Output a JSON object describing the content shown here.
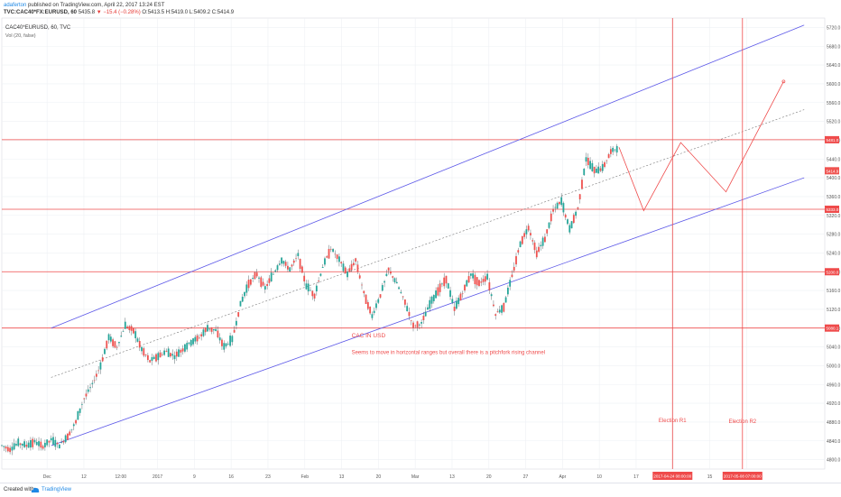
{
  "header": {
    "author": "adaferton",
    "published": "published on TradingView.com, April 22, 2017 13:24 EST",
    "symbol": "TVC:CAC40*FX:EURUSD, 60",
    "last": "5435.8",
    "change": "▼ −15.4 (−0.28%)",
    "ohlc": "O:5413.5  H:5419.0  L:5409.2  C:5414.9"
  },
  "chart_data": {
    "type": "line",
    "title": "CAC40*EURUSD, 60, TVC",
    "indicator": "Vol (20, false)",
    "ylim": [
      4780,
      5740
    ],
    "y_ticks": [
      "5720.0",
      "5680.0",
      "5640.0",
      "5600.0",
      "5560.0",
      "5520.0",
      "5480.0",
      "5440.0",
      "5400.0",
      "5360.0",
      "5320.0",
      "5280.0",
      "5240.0",
      "5200.0",
      "5160.0",
      "5120.0",
      "5080.0",
      "5040.0",
      "5000.0",
      "4960.0",
      "4920.0",
      "4880.0",
      "4840.0",
      "4800.0"
    ],
    "x_ticks": [
      "Dec",
      "12",
      "12:00",
      "2017",
      "9",
      "16",
      "23",
      "Feb",
      "13",
      "20",
      "Mar",
      "13",
      "20",
      "27",
      "Apr",
      "10",
      "17",
      "May",
      "15",
      "22"
    ],
    "price_series": {
      "name": "CAC40*EURUSD",
      "x": [
        0,
        2,
        4,
        6,
        8,
        10,
        12,
        14,
        16,
        18,
        20,
        22,
        24,
        26,
        28,
        30,
        32,
        34,
        36,
        38,
        40,
        42,
        44,
        46,
        48,
        50,
        52,
        54,
        56,
        58,
        60,
        62,
        64,
        66,
        68,
        70,
        72,
        74,
        76,
        78,
        80,
        82,
        84,
        86,
        88,
        90,
        92,
        94,
        96,
        98,
        100,
        102,
        104,
        106,
        108,
        110,
        112,
        114,
        116,
        118,
        120,
        122,
        124,
        126,
        128,
        130,
        132,
        134,
        136,
        138,
        140,
        142,
        144,
        146,
        148,
        150
      ],
      "y": [
        4830,
        4822,
        4835,
        4830,
        4838,
        4828,
        4842,
        4830,
        4850,
        4880,
        4930,
        4960,
        5000,
        5060,
        5040,
        5085,
        5075,
        5035,
        5010,
        5020,
        5030,
        5020,
        5035,
        5050,
        5060,
        5080,
        5075,
        5040,
        5055,
        5130,
        5175,
        5195,
        5165,
        5195,
        5225,
        5205,
        5235,
        5170,
        5150,
        5210,
        5250,
        5225,
        5195,
        5225,
        5155,
        5105,
        5150,
        5205,
        5175,
        5135,
        5085,
        5090,
        5130,
        5160,
        5185,
        5120,
        5155,
        5195,
        5175,
        5190,
        5110,
        5125,
        5190,
        5260,
        5295,
        5240,
        5270,
        5330,
        5350,
        5290,
        5335,
        5440,
        5415,
        5420,
        5455,
        5465
      ]
    },
    "channel_lines": [
      {
        "name": "upper",
        "points": [
          [
            12,
            5080
          ],
          [
            195,
            5725
          ]
        ]
      },
      {
        "name": "median",
        "points": [
          [
            12,
            4975
          ],
          [
            195,
            5545
          ]
        ]
      },
      {
        "name": "lower",
        "points": [
          [
            12,
            4830
          ],
          [
            195,
            5400
          ]
        ]
      }
    ],
    "horizontal_levels": [
      "5481.0",
      "5333.0",
      "5200.0",
      "5080.1"
    ],
    "vertical_markers": [
      "2017-04-24 08:00:00",
      "2017-05-08 07:00:00"
    ],
    "projection": [
      [
        150,
        5465
      ],
      [
        156,
        5330
      ],
      [
        165,
        5475
      ],
      [
        176,
        5370
      ],
      [
        190,
        5605
      ]
    ],
    "current_price": "5414.9",
    "annotations": {
      "title": "CAC IN USD",
      "body": "Seems to move in horizontal ranges but overall there is a pitchfork rising channel",
      "election1": "Election R1",
      "election2": "Election R2"
    },
    "colors": {
      "channel": "#5c58e8",
      "levels": "#ef4b4b",
      "up": "#26a69a",
      "down": "#ef5350",
      "dark": "#37474f"
    },
    "grid": true
  },
  "footer": {
    "created": "Created with",
    "brand": "TradingView",
    "logo_icon": "tradingview-cloud-icon"
  }
}
